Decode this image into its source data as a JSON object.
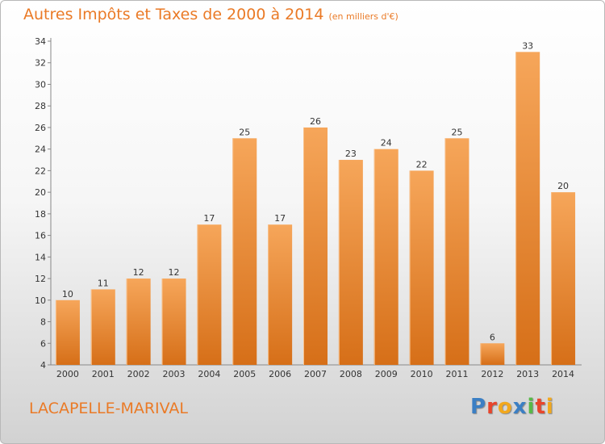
{
  "title": "Autres Impôts et Taxes de 2000 à 2014",
  "title_unit": "(en milliers d'€)",
  "location": "LACAPELLE-MARIVAL",
  "logo": {
    "text": "Proxiti",
    "letters": [
      {
        "char": "P",
        "color": "#3b7fc4"
      },
      {
        "char": "r",
        "color": "#e8452c"
      },
      {
        "char": "o",
        "color": "#f2a81d"
      },
      {
        "char": "x",
        "color": "#3b7fc4"
      },
      {
        "char": "i",
        "color": "#58b848"
      },
      {
        "char": "t",
        "color": "#e8452c"
      },
      {
        "char": "i",
        "color": "#f2a81d"
      }
    ]
  },
  "colors": {
    "accent": "#ea7a26",
    "bar_top": "#f6a65a",
    "bar_bottom": "#d66f18"
  },
  "chart_data": {
    "type": "bar",
    "categories": [
      "2000",
      "2001",
      "2002",
      "2003",
      "2004",
      "2005",
      "2006",
      "2007",
      "2008",
      "2009",
      "2010",
      "2011",
      "2012",
      "2013",
      "2014"
    ],
    "values": [
      10,
      11,
      12,
      12,
      17,
      25,
      17,
      26,
      23,
      24,
      22,
      25,
      6,
      33,
      20
    ],
    "ylim": [
      4,
      34
    ],
    "yticks": [
      4,
      6,
      8,
      10,
      12,
      14,
      16,
      18,
      20,
      22,
      24,
      26,
      28,
      30,
      32,
      34
    ],
    "grid": false
  }
}
